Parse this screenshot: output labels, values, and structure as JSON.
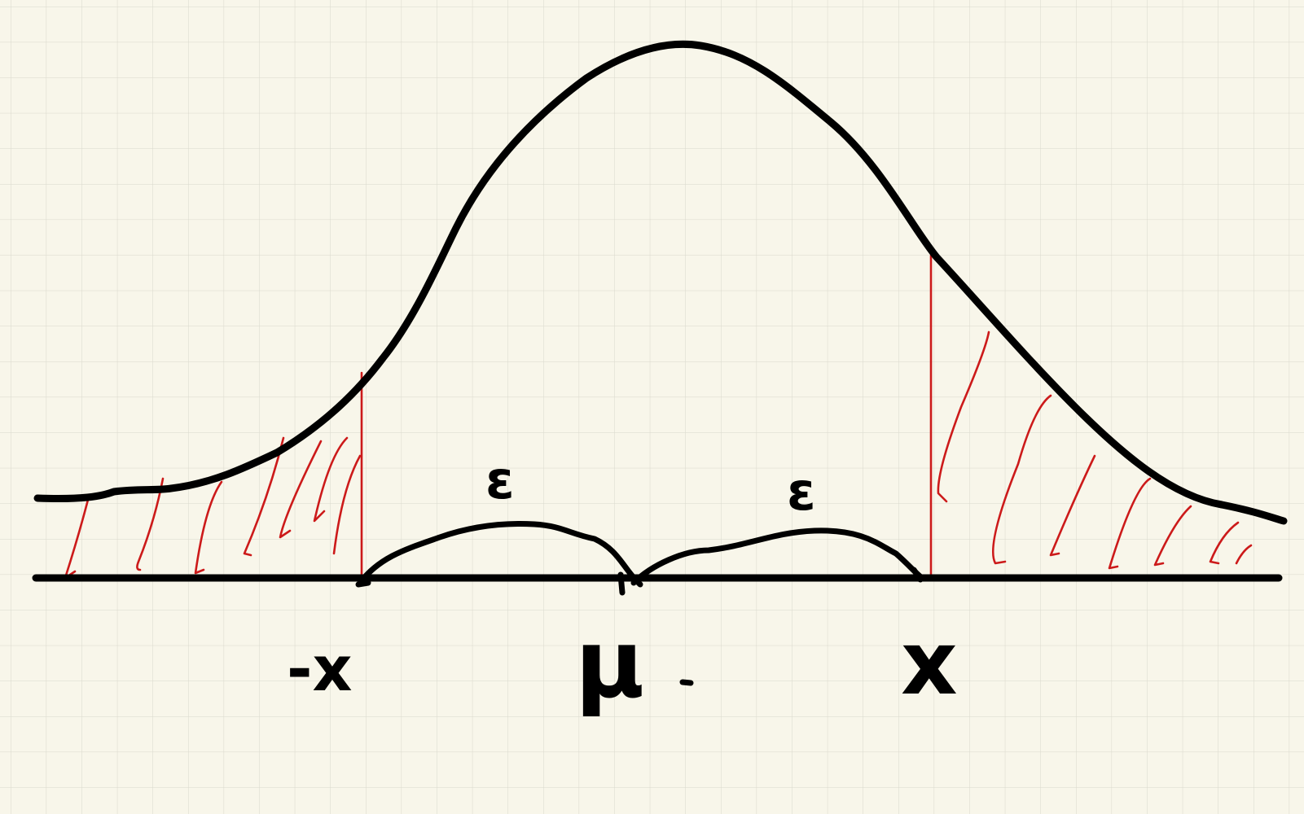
{
  "labels": {
    "left_bound": "-x",
    "center": "μ",
    "right_bound": "x",
    "left_gap": "ε",
    "right_gap": "ε"
  },
  "colors": {
    "paper": "#f8f6ea",
    "grid": "#d9d8cc",
    "ink": "#000000",
    "hatch": "#cc1a1a"
  }
}
